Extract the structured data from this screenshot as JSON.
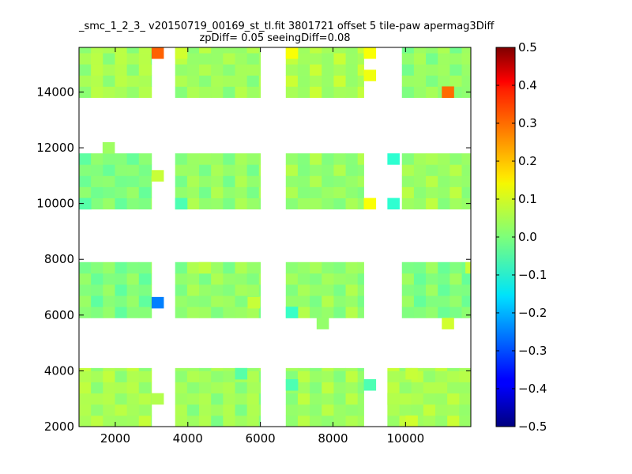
{
  "chart_data": {
    "type": "heatmap",
    "title_lines": [
      "_smc_1_2_3_ v20150719_00169_st_tl.fit 3801721 offset 5 tile-paw apermag3Diff",
      "zpDiff= 0.05 seeingDiff=0.08"
    ],
    "xlabel": "",
    "ylabel": "",
    "xlim": [
      1000,
      11800
    ],
    "ylim": [
      2000,
      15600
    ],
    "xticks": [
      2000,
      4000,
      6000,
      8000,
      10000
    ],
    "yticks": [
      2000,
      4000,
      6000,
      8000,
      10000,
      12000,
      14000
    ],
    "colorbar": {
      "colormap": "jet",
      "vmin": -0.5,
      "vmax": 0.5,
      "ticks": [
        0.5,
        0.4,
        0.3,
        0.2,
        0.1,
        0.0,
        -0.1,
        -0.2,
        -0.3,
        -0.4,
        -0.5
      ],
      "tick_labels": [
        "0.5",
        "0.4",
        "0.3",
        "0.2",
        "0.1",
        "0.0",
        "−0.1",
        "−0.2",
        "−0.3",
        "−0.4",
        "−0.5"
      ]
    },
    "grid": false,
    "cell_size": [
      330,
      400
    ],
    "detectors": [
      {
        "x": [
          1000,
          3000
        ],
        "y": [
          2000,
          4100
        ],
        "base": 0.04
      },
      {
        "x": [
          3650,
          6000
        ],
        "y": [
          2000,
          4100
        ],
        "base": 0.03
      },
      {
        "x": [
          6700,
          8850
        ],
        "y": [
          2000,
          4100
        ],
        "base": 0.03
      },
      {
        "x": [
          9500,
          11800
        ],
        "y": [
          2000,
          4100
        ],
        "base": 0.04
      },
      {
        "x": [
          1000,
          3000
        ],
        "y": [
          5900,
          7900
        ],
        "base": 0.0
      },
      {
        "x": [
          3650,
          6000
        ],
        "y": [
          5900,
          7900
        ],
        "base": 0.02
      },
      {
        "x": [
          6700,
          8850
        ],
        "y": [
          5900,
          7900
        ],
        "base": 0.02
      },
      {
        "x": [
          9900,
          11800
        ],
        "y": [
          5900,
          7900
        ],
        "base": 0.0
      },
      {
        "x": [
          1000,
          3000
        ],
        "y": [
          9800,
          11800
        ],
        "base": 0.0
      },
      {
        "x": [
          3650,
          6000
        ],
        "y": [
          9800,
          11800
        ],
        "base": 0.02
      },
      {
        "x": [
          6700,
          8850
        ],
        "y": [
          9800,
          11800
        ],
        "base": 0.02
      },
      {
        "x": [
          9900,
          11800
        ],
        "y": [
          9800,
          11800
        ],
        "base": 0.03
      },
      {
        "x": [
          1000,
          3000
        ],
        "y": [
          13800,
          15600
        ],
        "base": 0.04
      },
      {
        "x": [
          3650,
          6000
        ],
        "y": [
          13800,
          15600
        ],
        "base": 0.03
      },
      {
        "x": [
          6700,
          8850
        ],
        "y": [
          13800,
          15600
        ],
        "base": 0.04
      },
      {
        "x": [
          9900,
          11800
        ],
        "y": [
          13800,
          15600
        ],
        "base": 0.02
      }
    ],
    "outlier_cells": [
      {
        "x": 3000,
        "y": 15200,
        "value": 0.28
      },
      {
        "x": 3000,
        "y": 10800,
        "value": 0.07
      },
      {
        "x": 3000,
        "y": 6250,
        "value": -0.25
      },
      {
        "x": 3000,
        "y": 2800,
        "value": 0.05
      },
      {
        "x": 1650,
        "y": 11800,
        "value": 0.03
      },
      {
        "x": 11000,
        "y": 13800,
        "value": 0.27
      },
      {
        "x": 8850,
        "y": 15200,
        "value": 0.12
      },
      {
        "x": 8850,
        "y": 14400,
        "value": 0.11
      },
      {
        "x": 6700,
        "y": 15200,
        "value": 0.12
      },
      {
        "x": 3650,
        "y": 15200,
        "value": 0.08
      },
      {
        "x": 8850,
        "y": 9800,
        "value": 0.12
      },
      {
        "x": 9500,
        "y": 9800,
        "value": -0.08
      },
      {
        "x": 9500,
        "y": 11400,
        "value": -0.08
      },
      {
        "x": 6700,
        "y": 5900,
        "value": -0.07
      },
      {
        "x": 3650,
        "y": 9800,
        "value": -0.05
      },
      {
        "x": 1000,
        "y": 9800,
        "value": -0.04
      },
      {
        "x": 11000,
        "y": 5500,
        "value": 0.08
      },
      {
        "x": 7550,
        "y": 5500,
        "value": 0.02
      },
      {
        "x": 10000,
        "y": 2000,
        "value": 0.08
      },
      {
        "x": 9500,
        "y": 2800,
        "value": 0.05
      },
      {
        "x": 10000,
        "y": 3700,
        "value": 0.07
      },
      {
        "x": 8850,
        "y": 3300,
        "value": -0.05
      },
      {
        "x": 6700,
        "y": 3300,
        "value": -0.05
      },
      {
        "x": 5650,
        "y": 6250,
        "value": 0.07
      },
      {
        "x": 4300,
        "y": 7500,
        "value": 0.06
      },
      {
        "x": 11650,
        "y": 7500,
        "value": 0.07
      },
      {
        "x": 5300,
        "y": 3700,
        "value": -0.04
      }
    ]
  }
}
